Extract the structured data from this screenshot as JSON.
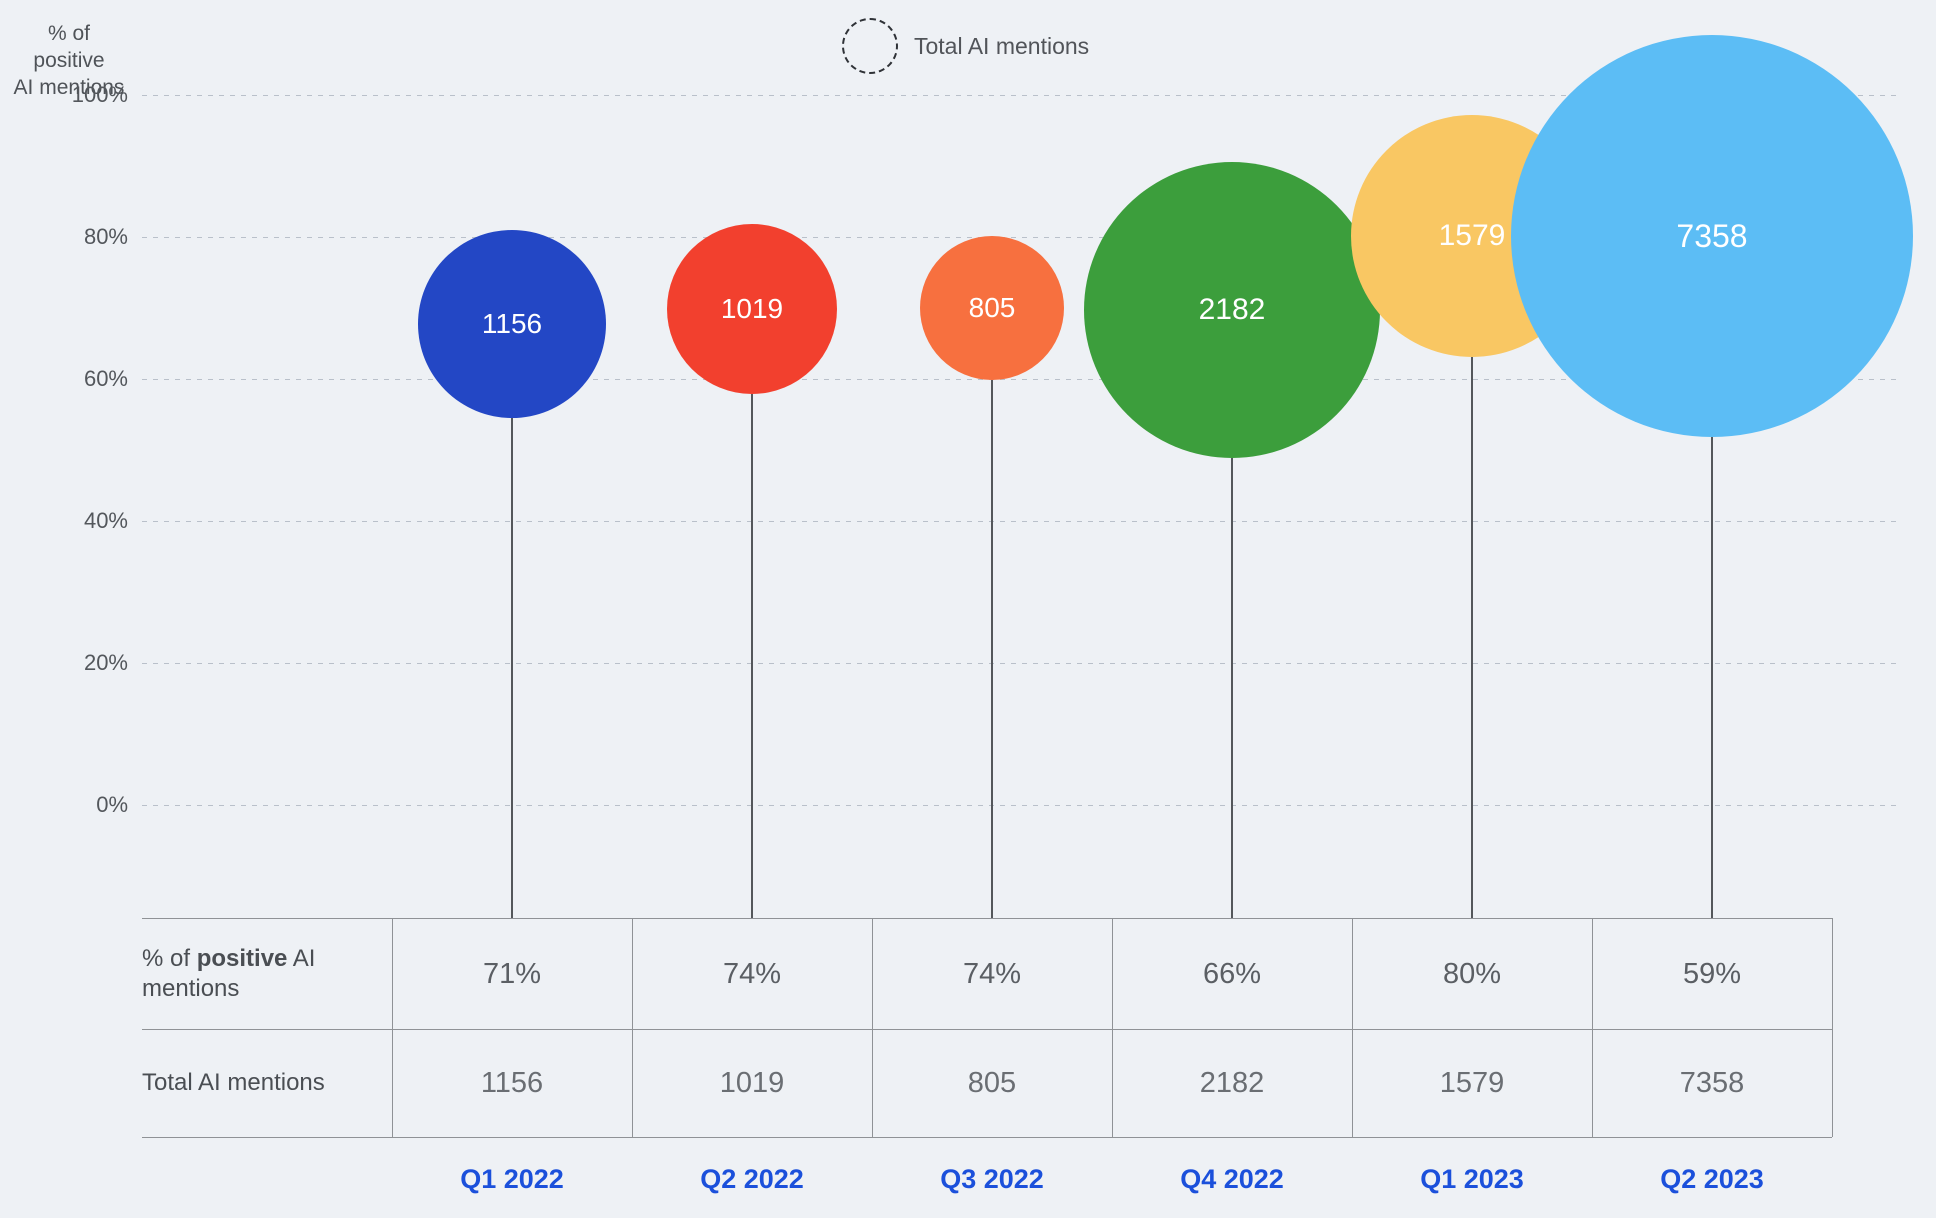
{
  "chart_data": {
    "type": "bubble",
    "categories": [
      "Q1 2022",
      "Q2 2022",
      "Q3 2022",
      "Q4 2022",
      "Q1 2023",
      "Q2 2023"
    ],
    "series": [
      {
        "name": "% of positive AI mentions",
        "values": [
          71,
          74,
          74,
          66,
          80,
          59
        ],
        "unit": "%"
      },
      {
        "name": "Total AI mentions",
        "values": [
          1156,
          1019,
          805,
          2182,
          1579,
          7358
        ]
      }
    ],
    "ylabel": "% of positive AI mentions",
    "y_ticks": [
      "100%",
      "80%",
      "60%",
      "40%",
      "20%",
      "0%"
    ],
    "ylim": [
      0,
      100
    ],
    "grid": "horizontal-dashed",
    "legend": {
      "label": "Total AI mentions",
      "position": "top-center",
      "symbol": "dashed-circle"
    },
    "size_encoding": "Total AI mentions",
    "bubble_colors": [
      "#2347C5",
      "#F2402E",
      "#F7703F",
      "#3C9E3C",
      "#F9C763",
      "#5CBDF5"
    ]
  },
  "axis_title": {
    "line1": "% of positive",
    "line2": "AI mentions"
  },
  "legend": {
    "label": "Total AI mentions"
  },
  "table": {
    "row1_label_pre": "% of ",
    "row1_label_bold": "positive",
    "row1_label_post": " AI mentions",
    "row2_label": "Total AI mentions"
  },
  "colors": {
    "background": "#EEF1F5",
    "gridline": "#B9C0CA",
    "stem": "#54575B",
    "table_border": "#8F9296",
    "tick_text": "#53575C",
    "value_text": "#5B5F64",
    "quarter_label": "#1B50DB",
    "bubble_label_text": "#FFFFFF"
  }
}
